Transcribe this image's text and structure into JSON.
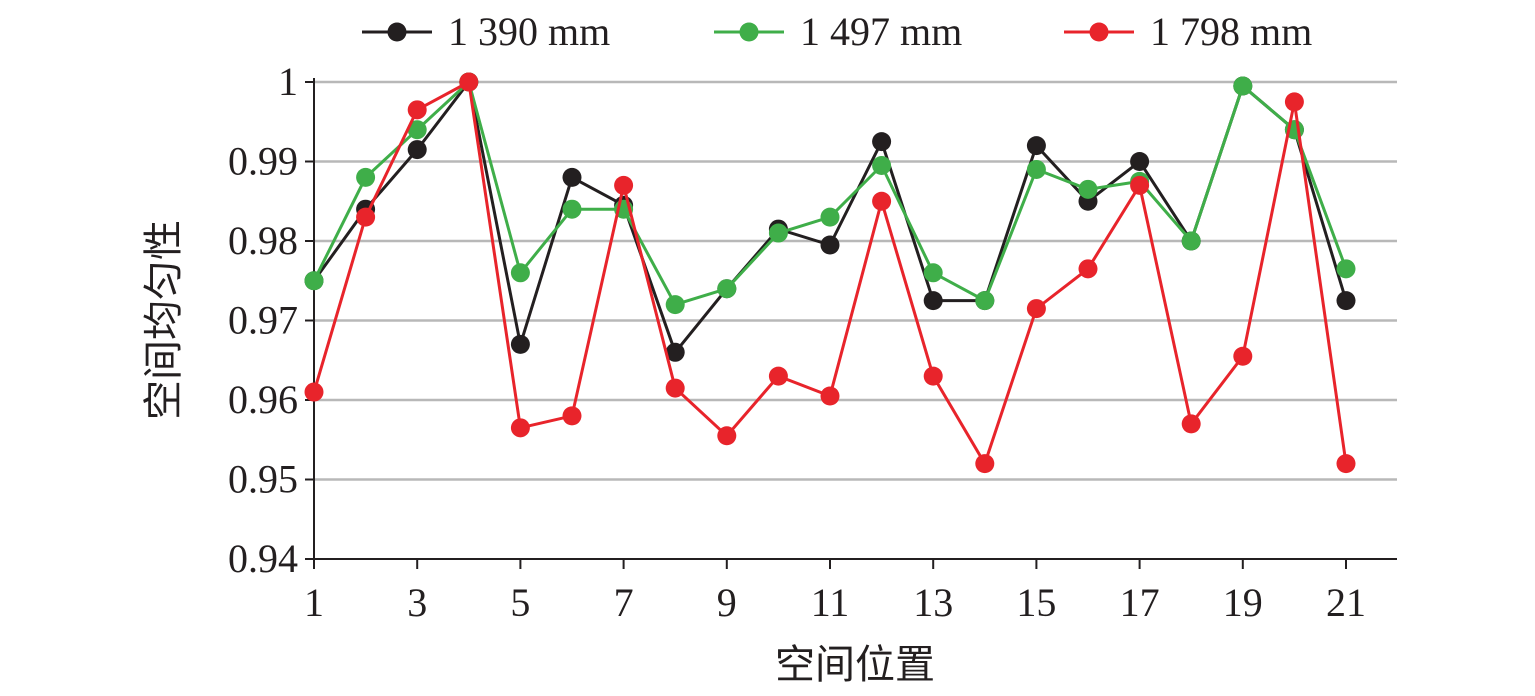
{
  "chart_data": {
    "type": "line",
    "xlabel": "空间位置",
    "ylabel": "空间均匀性",
    "x": [
      1,
      2,
      3,
      4,
      5,
      6,
      7,
      8,
      9,
      10,
      11,
      12,
      13,
      14,
      15,
      16,
      17,
      18,
      19,
      20,
      21
    ],
    "xticks": [
      "1",
      "3",
      "5",
      "7",
      "9",
      "11",
      "13",
      "15",
      "17",
      "19",
      "21"
    ],
    "xlim": [
      1,
      22
    ],
    "ylim": [
      0.94,
      1.0
    ],
    "yticks": [
      "0.94",
      "0.95",
      "0.96",
      "0.97",
      "0.98",
      "0.99",
      "1"
    ],
    "grid": "horizontal",
    "legend": "top",
    "series": [
      {
        "name": "1 390 mm",
        "color": "#231f20",
        "values": [
          0.975,
          0.984,
          0.9915,
          1.0,
          0.967,
          0.988,
          0.9845,
          0.966,
          0.974,
          0.9815,
          0.9795,
          0.9925,
          0.9725,
          0.9725,
          0.992,
          0.985,
          0.99,
          0.98,
          0.9995,
          0.994,
          0.9725
        ]
      },
      {
        "name": "1 497 mm",
        "color": "#3fae49",
        "values": [
          0.975,
          0.988,
          0.994,
          1.0,
          0.976,
          0.984,
          0.984,
          0.972,
          0.974,
          0.981,
          0.983,
          0.9895,
          0.976,
          0.9725,
          0.989,
          0.9865,
          0.9875,
          0.98,
          0.9995,
          0.994,
          0.9765
        ]
      },
      {
        "name": "1 798 mm",
        "color": "#e8242b",
        "values": [
          0.961,
          0.983,
          0.9965,
          1.0,
          0.9565,
          0.958,
          0.987,
          0.9615,
          0.9555,
          0.963,
          0.9605,
          0.985,
          0.963,
          0.952,
          0.9715,
          0.9765,
          0.987,
          0.957,
          0.9655,
          0.9975,
          0.952
        ]
      }
    ]
  }
}
